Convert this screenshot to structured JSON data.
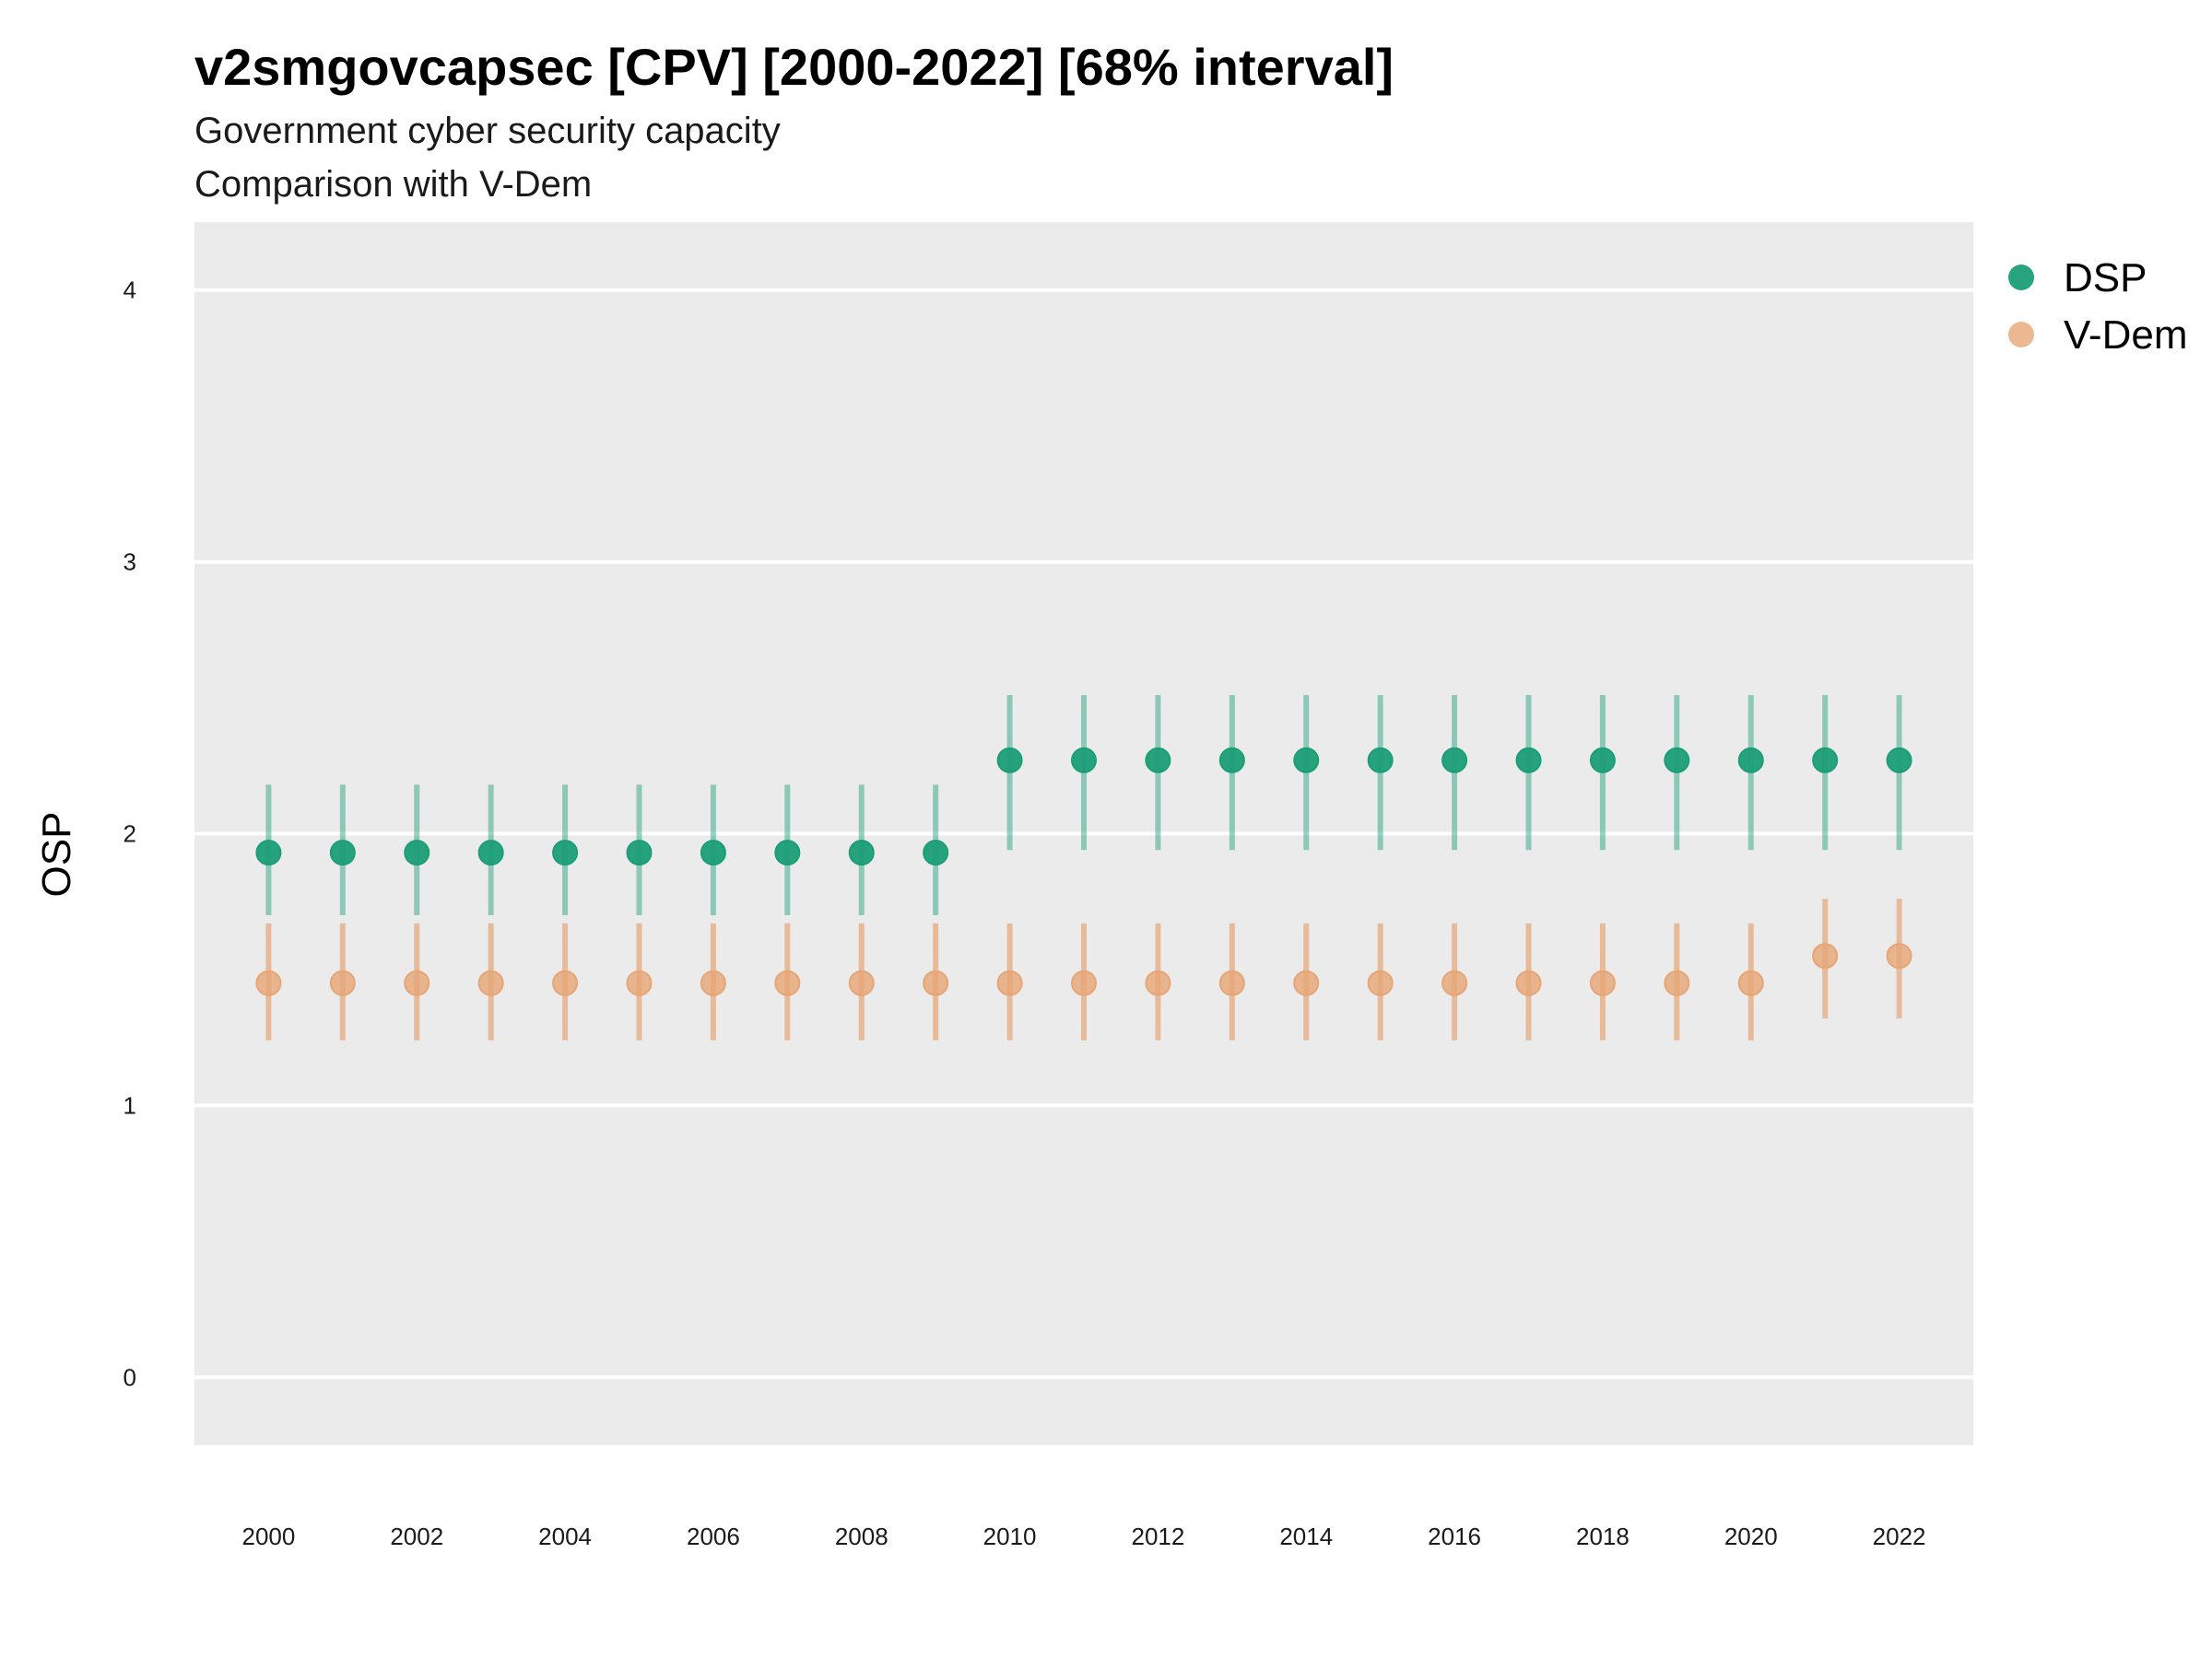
{
  "chart_data": {
    "type": "scatter",
    "title": "v2smgovcapsec [CPV] [2000-2022] [68% interval]",
    "subtitle": "Government cyber security capacity",
    "subtitle2": "Comparison with V-Dem",
    "xlabel": "",
    "ylabel": "OSP",
    "xlim": [
      1999,
      2023
    ],
    "ylim": [
      -0.25,
      4.25
    ],
    "x_ticks": [
      2000,
      2002,
      2004,
      2006,
      2008,
      2010,
      2012,
      2014,
      2016,
      2018,
      2020,
      2022
    ],
    "y_ticks": [
      0,
      1,
      2,
      3,
      4
    ],
    "grid": true,
    "legend_position": "top-right",
    "x": [
      2000,
      2001,
      2002,
      2003,
      2004,
      2005,
      2006,
      2007,
      2008,
      2009,
      2010,
      2011,
      2012,
      2013,
      2014,
      2015,
      2016,
      2017,
      2018,
      2019,
      2020,
      2021,
      2022
    ],
    "series": [
      {
        "name": "DSP",
        "color": "#1b9e77",
        "values": [
          1.93,
          1.93,
          1.93,
          1.93,
          1.93,
          1.93,
          1.93,
          1.93,
          1.93,
          1.93,
          2.27,
          2.27,
          2.27,
          2.27,
          2.27,
          2.27,
          2.27,
          2.27,
          2.27,
          2.27,
          2.27,
          2.27,
          2.27
        ],
        "lower": [
          1.7,
          1.7,
          1.7,
          1.7,
          1.7,
          1.7,
          1.7,
          1.7,
          1.7,
          1.7,
          1.94,
          1.94,
          1.94,
          1.94,
          1.94,
          1.94,
          1.94,
          1.94,
          1.94,
          1.94,
          1.94,
          1.94,
          1.94
        ],
        "upper": [
          2.18,
          2.18,
          2.18,
          2.18,
          2.18,
          2.18,
          2.18,
          2.18,
          2.18,
          2.18,
          2.51,
          2.51,
          2.51,
          2.51,
          2.51,
          2.51,
          2.51,
          2.51,
          2.51,
          2.51,
          2.51,
          2.51,
          2.51
        ]
      },
      {
        "name": "V-Dem",
        "color": "#e6a676",
        "values": [
          1.45,
          1.45,
          1.45,
          1.45,
          1.45,
          1.45,
          1.45,
          1.45,
          1.45,
          1.45,
          1.45,
          1.45,
          1.45,
          1.45,
          1.45,
          1.45,
          1.45,
          1.45,
          1.45,
          1.45,
          1.45,
          1.55,
          1.55
        ],
        "lower": [
          1.24,
          1.24,
          1.24,
          1.24,
          1.24,
          1.24,
          1.24,
          1.24,
          1.24,
          1.24,
          1.24,
          1.24,
          1.24,
          1.24,
          1.24,
          1.24,
          1.24,
          1.24,
          1.24,
          1.24,
          1.24,
          1.32,
          1.32
        ],
        "upper": [
          1.67,
          1.67,
          1.67,
          1.67,
          1.67,
          1.67,
          1.67,
          1.67,
          1.67,
          1.67,
          1.67,
          1.67,
          1.67,
          1.67,
          1.67,
          1.67,
          1.67,
          1.67,
          1.67,
          1.67,
          1.67,
          1.76,
          1.76
        ]
      }
    ]
  }
}
